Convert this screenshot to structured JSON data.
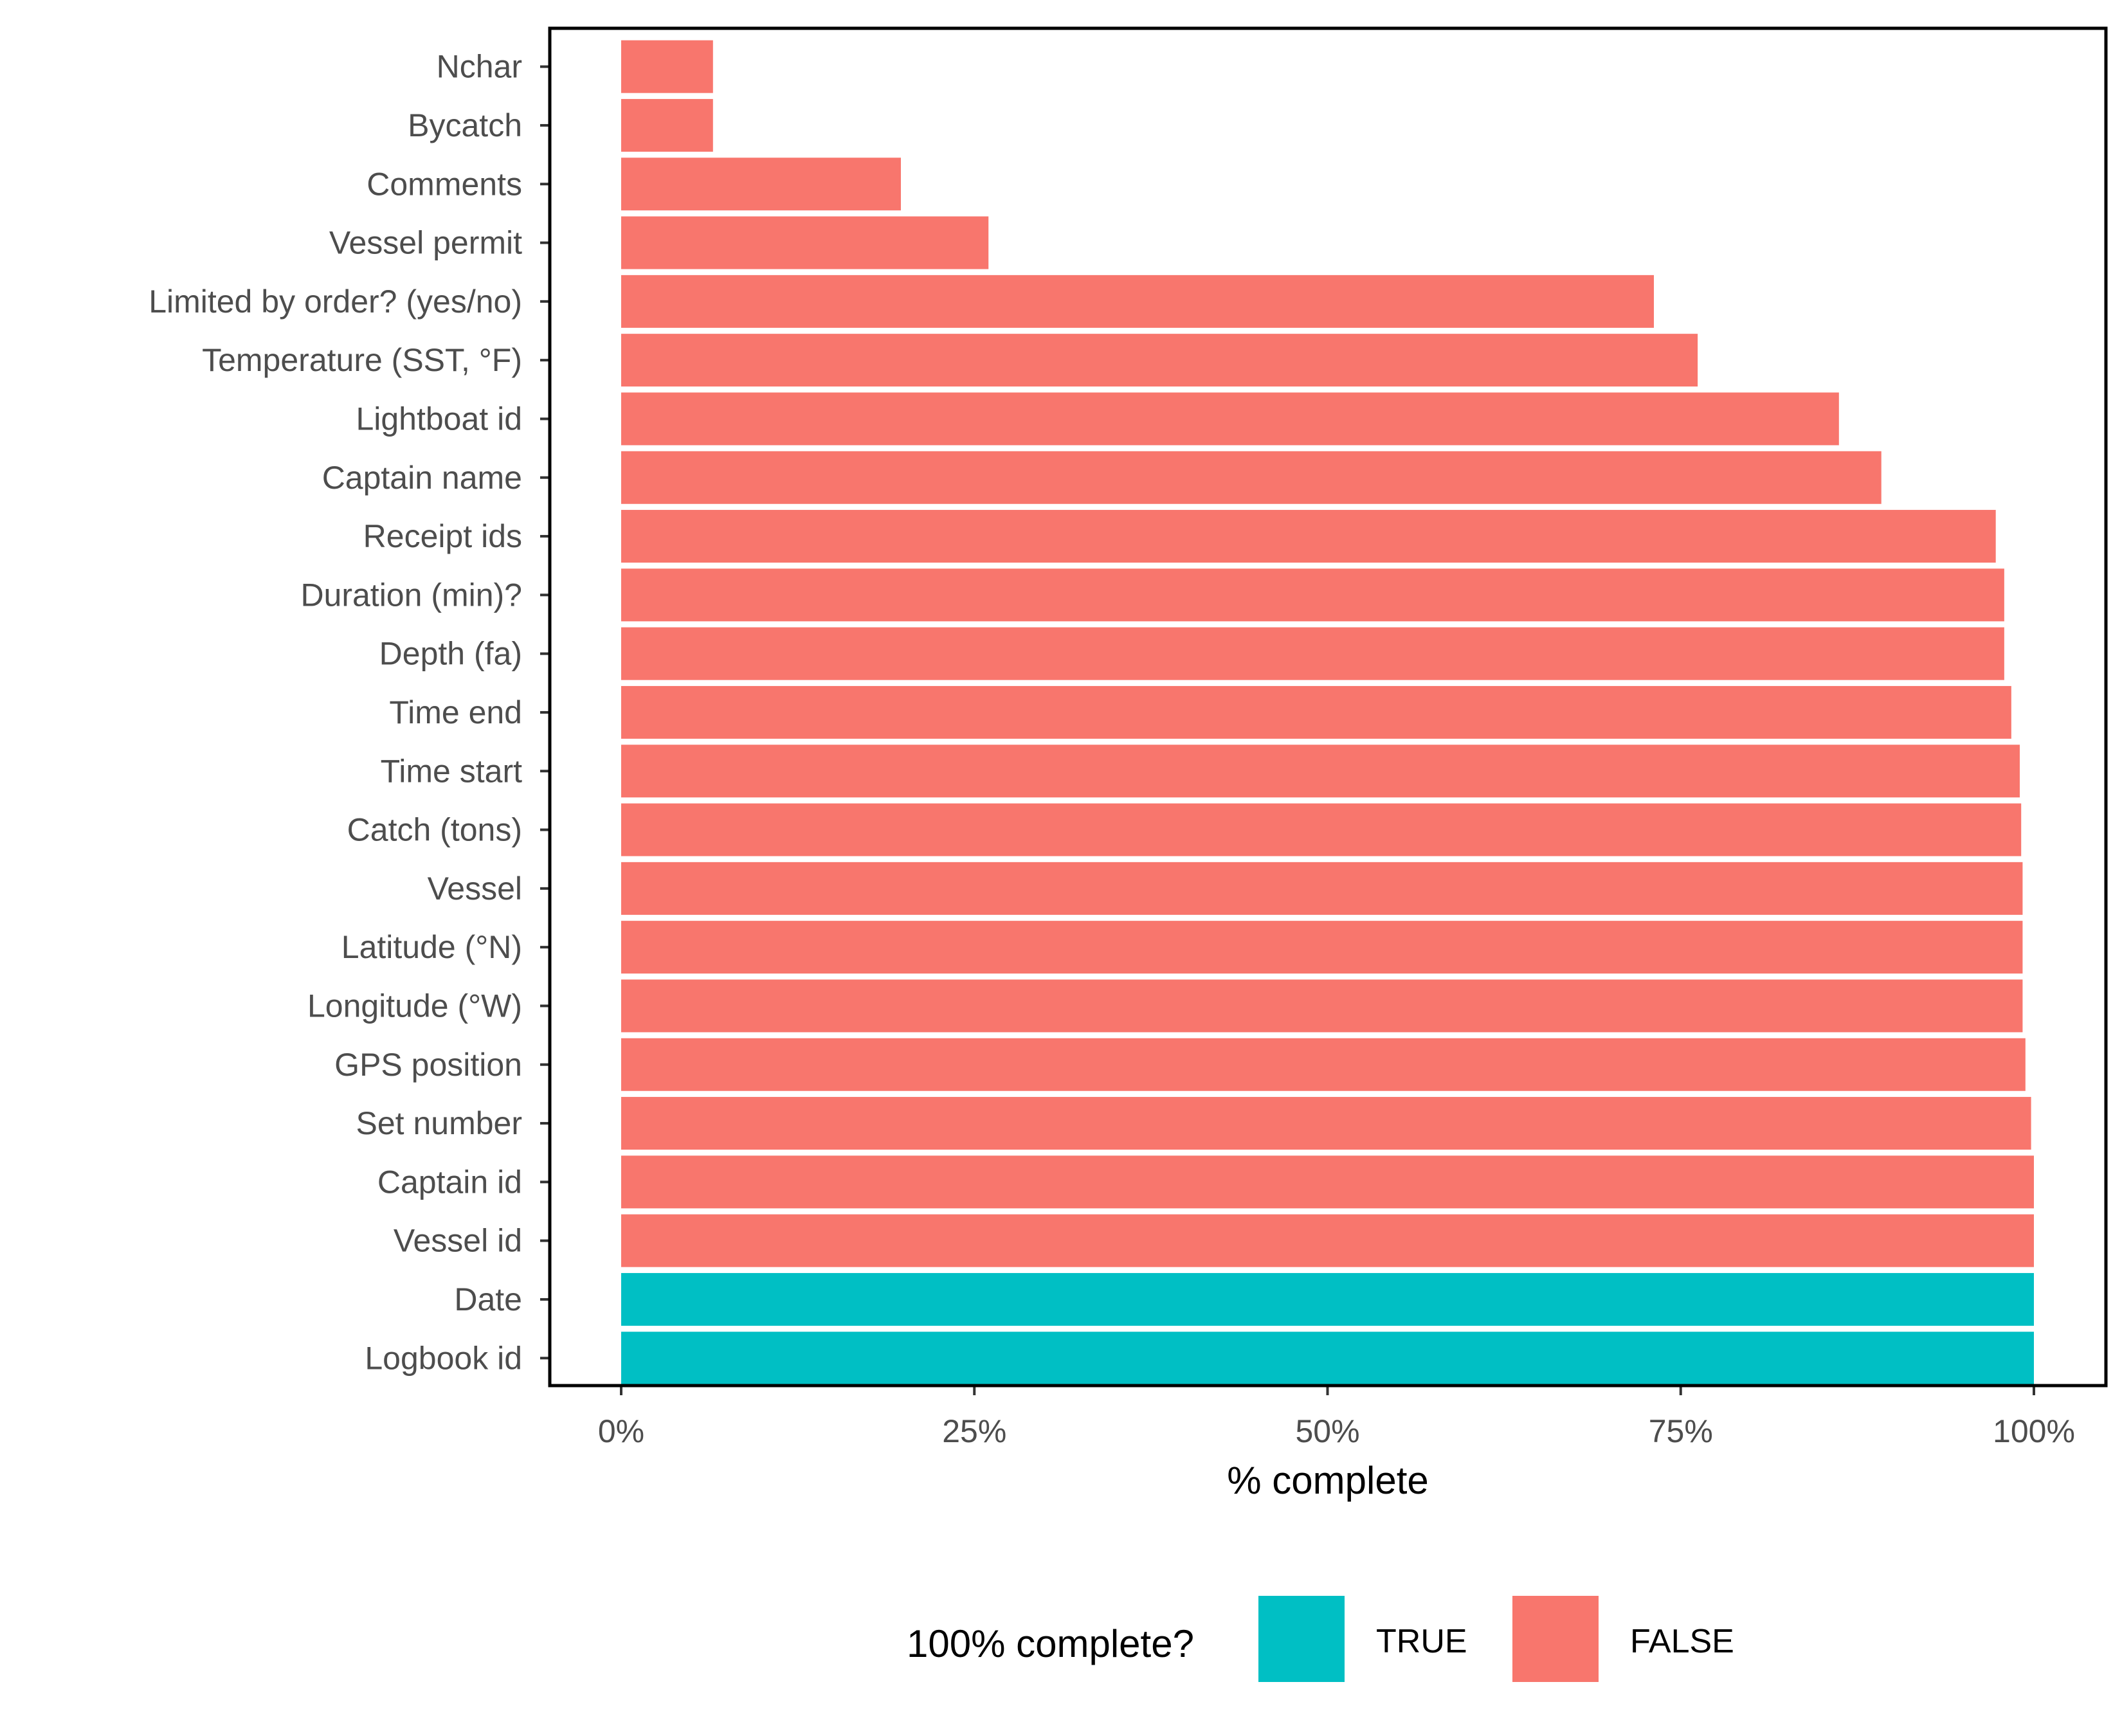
{
  "chart_data": {
    "type": "bar",
    "orientation": "horizontal",
    "xlabel": "% complete",
    "ylabel": "",
    "xlim": [
      0,
      1
    ],
    "x_ticks": [
      "0%",
      "25%",
      "50%",
      "75%",
      "100%"
    ],
    "x_tick_values": [
      0,
      0.25,
      0.5,
      0.75,
      1.0
    ],
    "grid": false,
    "categories": [
      "Nchar",
      "Bycatch",
      "Comments",
      "Vessel permit",
      "Limited by order? (yes/no)",
      "Temperature (SST, °F)",
      "Lightboat id",
      "Captain name",
      "Receipt ids",
      "Duration (min)?",
      "Depth (fa)",
      "Time end",
      "Time start",
      "Catch (tons)",
      "Vessel",
      "Latitude (°N)",
      "Longitude (°W)",
      "GPS position",
      "Set number",
      "Captain id",
      "Vessel id",
      "Date",
      "Logbook id"
    ],
    "values": [
      0.065,
      0.065,
      0.198,
      0.26,
      0.731,
      0.762,
      0.862,
      0.892,
      0.973,
      0.979,
      0.979,
      0.984,
      0.99,
      0.991,
      0.992,
      0.992,
      0.992,
      0.994,
      0.998,
      1.0,
      1.0,
      1.0,
      1.0
    ],
    "complete": [
      false,
      false,
      false,
      false,
      false,
      false,
      false,
      false,
      false,
      false,
      false,
      false,
      false,
      false,
      false,
      false,
      false,
      false,
      false,
      false,
      false,
      true,
      true
    ],
    "legend": {
      "title": "100% complete?",
      "placement": "bottom",
      "entries": [
        {
          "label": "TRUE",
          "color": "#00BFC4"
        },
        {
          "label": "FALSE",
          "color": "#F8766D"
        }
      ]
    },
    "colors": {
      "true": "#00BFC4",
      "false": "#F8766D"
    }
  }
}
